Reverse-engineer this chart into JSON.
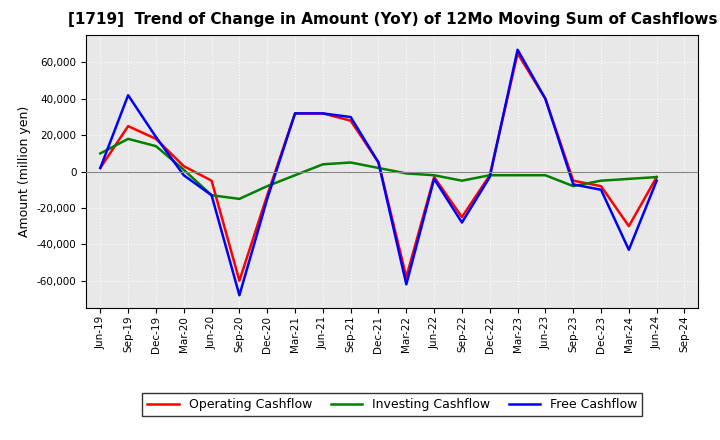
{
  "title": "[1719]  Trend of Change in Amount (YoY) of 12Mo Moving Sum of Cashflows",
  "ylabel": "Amount (million yen)",
  "x_labels": [
    "Jun-19",
    "Sep-19",
    "Dec-19",
    "Mar-20",
    "Jun-20",
    "Sep-20",
    "Dec-20",
    "Mar-21",
    "Jun-21",
    "Sep-21",
    "Dec-21",
    "Mar-22",
    "Jun-22",
    "Sep-22",
    "Dec-22",
    "Mar-23",
    "Jun-23",
    "Sep-23",
    "Dec-23",
    "Mar-24",
    "Jun-24",
    "Sep-24"
  ],
  "operating": [
    2000,
    25000,
    18000,
    3000,
    -5000,
    -60000,
    -13000,
    32000,
    32000,
    28000,
    5000,
    -58000,
    -3000,
    -25000,
    -2000,
    65000,
    40000,
    -5000,
    -8000,
    -30000,
    -3000,
    null
  ],
  "investing": [
    10000,
    18000,
    14000,
    1000,
    -13000,
    -15000,
    -8000,
    -2000,
    4000,
    5000,
    2000,
    -1000,
    -2000,
    -5000,
    -2000,
    -2000,
    -2000,
    -8000,
    -5000,
    -4000,
    -3000,
    null
  ],
  "free": [
    2000,
    42000,
    19000,
    -2000,
    -13000,
    -68000,
    -15000,
    32000,
    32000,
    30000,
    5000,
    -62000,
    -4000,
    -28000,
    -3000,
    67000,
    40000,
    -7000,
    -10000,
    -43000,
    -5000,
    null
  ],
  "operating_color": "#ff0000",
  "investing_color": "#008000",
  "free_color": "#0000ff",
  "bg_color": "#ffffff",
  "plot_bg_color": "#e8e8e8",
  "grid_color": "#ffffff",
  "zero_line_color": "#888888",
  "ylim": [
    -75000,
    75000
  ],
  "yticks": [
    -60000,
    -40000,
    -20000,
    0,
    20000,
    40000,
    60000
  ],
  "line_width": 1.8,
  "title_fontsize": 11,
  "tick_fontsize": 7.5,
  "ylabel_fontsize": 9,
  "legend_fontsize": 9
}
